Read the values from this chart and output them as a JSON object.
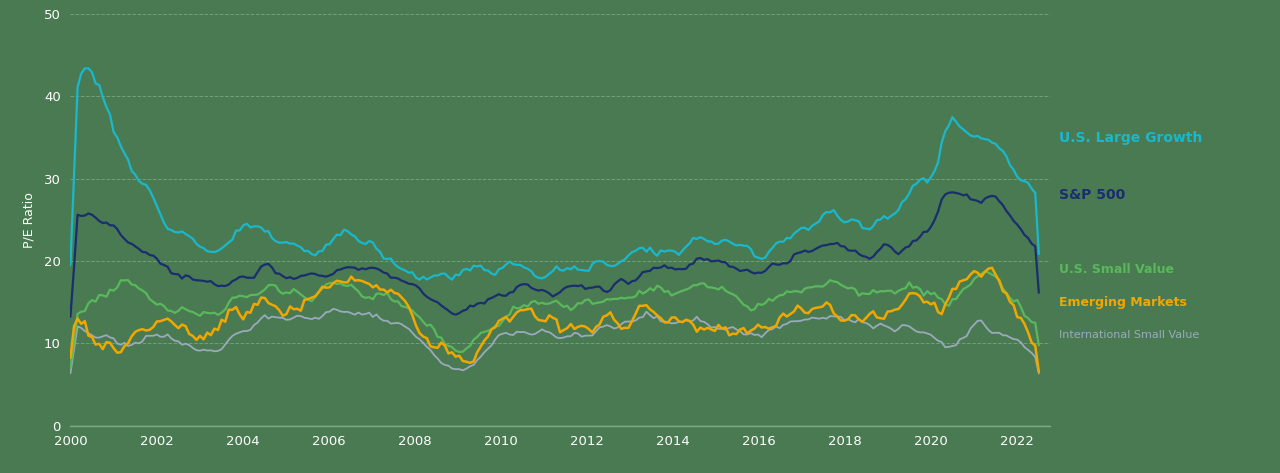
{
  "ylabel": "P/E Ratio",
  "xlim": [
    2000.0,
    2022.75
  ],
  "ylim": [
    0,
    50
  ],
  "yticks": [
    0,
    10,
    20,
    30,
    40,
    50
  ],
  "xticks": [
    2000,
    2002,
    2004,
    2006,
    2008,
    2010,
    2012,
    2014,
    2016,
    2018,
    2020,
    2022
  ],
  "background_color": "#4a7a52",
  "grid_color": "#6a9a72",
  "series": {
    "US_Large_Growth": {
      "color": "#1ab8cc",
      "label": "U.S. Large Growth",
      "linewidth": 1.6
    },
    "SP500": {
      "color": "#1a2e6e",
      "label": "S&P 500",
      "linewidth": 1.6
    },
    "US_Small_Value": {
      "color": "#5ab85c",
      "label": "U.S. Small Value",
      "linewidth": 1.6
    },
    "Emerging_Markets": {
      "color": "#f0a800",
      "label": "Emerging Markets",
      "linewidth": 1.8
    },
    "Intl_Small_Value": {
      "color": "#9aaabb",
      "label": "International Small Value",
      "linewidth": 1.3
    }
  },
  "legend_labels": [
    "U.S. Large Growth",
    "S&P 500",
    "U.S. Small Value",
    "Emerging Markets",
    "International Small Value"
  ],
  "legend_colors": [
    "#1ab8cc",
    "#1a2e6e",
    "#5ab85c",
    "#f0a800",
    "#9aaabb"
  ],
  "legend_fontsizes": [
    10,
    10,
    9,
    9,
    8
  ],
  "legend_bold": [
    true,
    true,
    true,
    true,
    false
  ]
}
